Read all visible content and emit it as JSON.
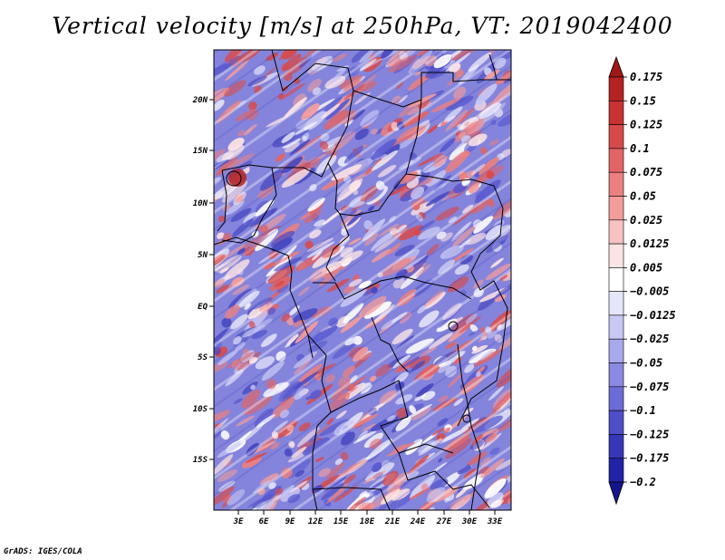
{
  "title": "Vertical velocity [m/s] at 250hPa, VT: 2019042400",
  "credit": "GrADS: IGES/COLA",
  "map": {
    "lat_labels": [
      "20N",
      "15N",
      "10N",
      "5N",
      "EQ",
      "5S",
      "10S",
      "15S"
    ],
    "lon_labels": [
      "3E",
      "6E",
      "9E",
      "12E",
      "15E",
      "18E",
      "21E",
      "24E",
      "27E",
      "30E",
      "33E"
    ]
  },
  "colorbar": {
    "levels": [
      "0.175",
      "0.15",
      "0.125",
      "0.1",
      "0.075",
      "0.05",
      "0.025",
      "0.0125",
      "0.005",
      "-0.005",
      "-0.0125",
      "-0.025",
      "-0.05",
      "-0.075",
      "-0.1",
      "-0.125",
      "-0.175",
      "-0.2"
    ],
    "colors": [
      "#a01818",
      "#b42222",
      "#c83232",
      "#d84a4a",
      "#e36464",
      "#eb8080",
      "#f29c9c",
      "#f8c2c2",
      "#fde4e4",
      "#ffffff",
      "#e6e6fb",
      "#c8c8f4",
      "#a8a8ec",
      "#8a8ae2",
      "#6c6cd6",
      "#4e4ec8",
      "#3636b8",
      "#2222a6",
      "#14148c"
    ]
  }
}
